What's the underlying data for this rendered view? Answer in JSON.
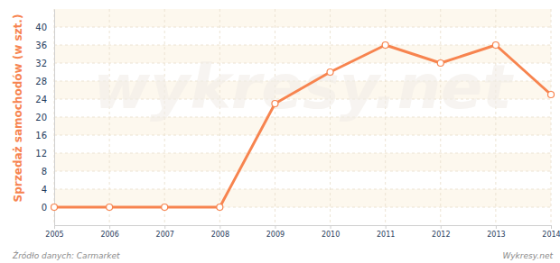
{
  "chart_data": {
    "type": "line",
    "y_label": "Sprzedaż samochodów (w szt.)",
    "x": [
      2005,
      2006,
      2007,
      2008,
      2009,
      2010,
      2011,
      2012,
      2013,
      2014
    ],
    "values": [
      0,
      0,
      0,
      0,
      23,
      30,
      36,
      32,
      36,
      25
    ],
    "color": "#f7844f",
    "marker": "circle",
    "line_style": "solid",
    "xlim": [
      2005,
      2014
    ],
    "xticks": [
      2005,
      2006,
      2007,
      2008,
      2009,
      2010,
      2011,
      2012,
      2013,
      2014
    ],
    "ylim": [
      -4,
      44
    ],
    "yticks": [
      0,
      4,
      8,
      12,
      16,
      20,
      24,
      28,
      32,
      36,
      40
    ],
    "grid": true,
    "annotations": [
      "Źródło danych: Carmarket",
      "Wykresy.net",
      "wykresy.net"
    ]
  }
}
